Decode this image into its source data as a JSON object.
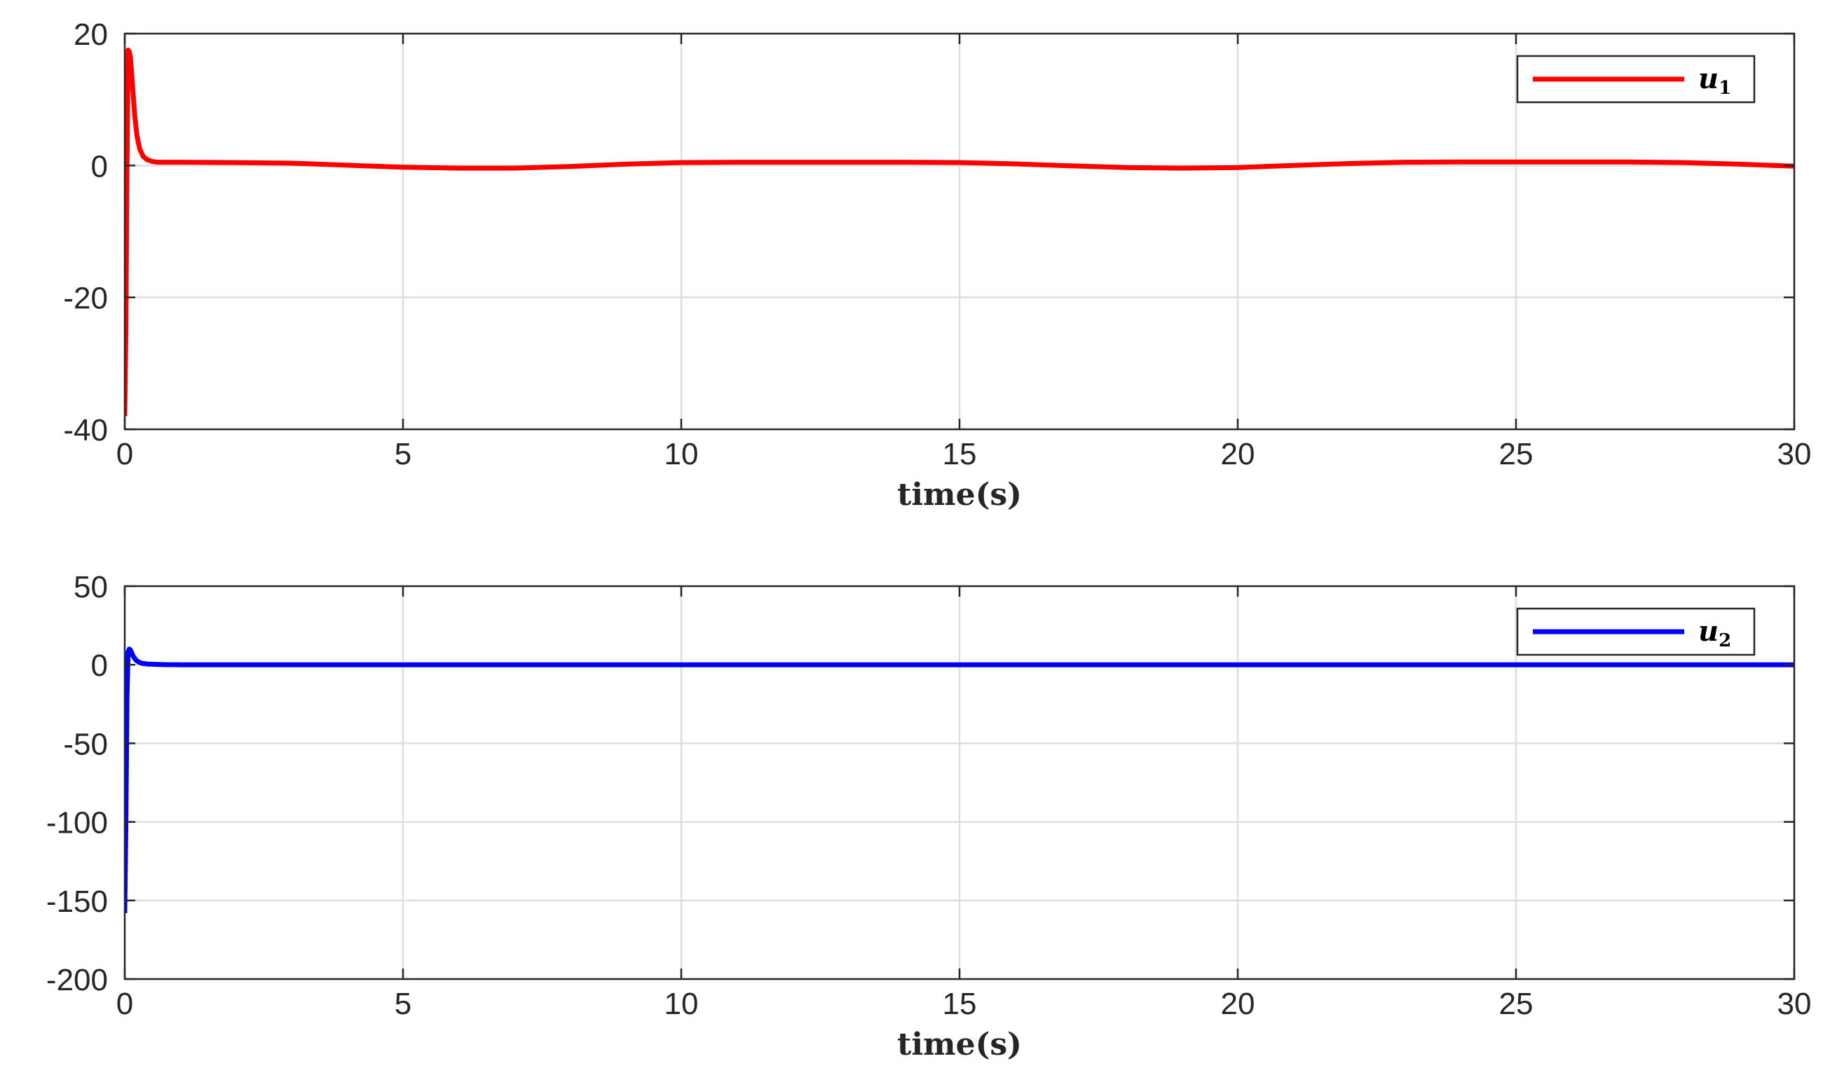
{
  "chart_data": [
    {
      "type": "line",
      "xlabel": "time(s)",
      "ylabel": "",
      "xlim": [
        0,
        30
      ],
      "ylim": [
        -40,
        20
      ],
      "xticks": [
        "0",
        "5",
        "10",
        "15",
        "20",
        "25",
        "30"
      ],
      "yticks": [
        "20",
        "0",
        "-20",
        "-40"
      ],
      "grid": true,
      "legend_position": "top-right",
      "series": [
        {
          "name": "u",
          "name_sub": "1",
          "color": "#ff0000",
          "x": [
            0,
            0.02,
            0.04,
            0.06,
            0.08,
            0.1,
            0.12,
            0.15,
            0.18,
            0.22,
            0.27,
            0.33,
            0.4,
            0.5,
            0.6,
            0.8,
            1,
            2,
            3,
            4,
            5,
            6,
            7,
            8,
            9,
            10,
            11,
            12,
            13,
            14,
            15,
            16,
            17,
            18,
            19,
            20,
            21,
            22,
            23,
            24,
            25,
            26,
            27,
            28,
            29,
            30
          ],
          "y": [
            -38,
            -25,
            0,
            17.5,
            17.3,
            16.5,
            14.5,
            11,
            7.5,
            4.5,
            2.5,
            1.4,
            0.9,
            0.6,
            0.5,
            0.5,
            0.5,
            0.45,
            0.35,
            0.05,
            -0.25,
            -0.4,
            -0.4,
            -0.15,
            0.2,
            0.45,
            0.5,
            0.5,
            0.5,
            0.5,
            0.45,
            0.25,
            -0.05,
            -0.3,
            -0.4,
            -0.3,
            0.0,
            0.3,
            0.5,
            0.55,
            0.55,
            0.55,
            0.55,
            0.45,
            0.2,
            -0.1
          ]
        }
      ]
    },
    {
      "type": "line",
      "xlabel": "time(s)",
      "ylabel": "",
      "xlim": [
        0,
        30
      ],
      "ylim": [
        -200,
        50
      ],
      "xticks": [
        "0",
        "5",
        "10",
        "15",
        "20",
        "25",
        "30"
      ],
      "yticks": [
        "50",
        "0",
        "-50",
        "-100",
        "-150",
        "-200"
      ],
      "grid": true,
      "legend_position": "top-right",
      "series": [
        {
          "name": "u",
          "name_sub": "2",
          "color": "#0000ff",
          "x": [
            0,
            0.02,
            0.04,
            0.06,
            0.08,
            0.1,
            0.12,
            0.15,
            0.2,
            0.25,
            0.3,
            0.4,
            0.5,
            0.7,
            1,
            5,
            10,
            15,
            20,
            25,
            30
          ],
          "y": [
            -158,
            -100,
            -20,
            8,
            10,
            9.5,
            8,
            5.5,
            3,
            1.8,
            1,
            0.5,
            0.3,
            0.1,
            0,
            0,
            0,
            0,
            0,
            0,
            0
          ]
        }
      ]
    }
  ]
}
